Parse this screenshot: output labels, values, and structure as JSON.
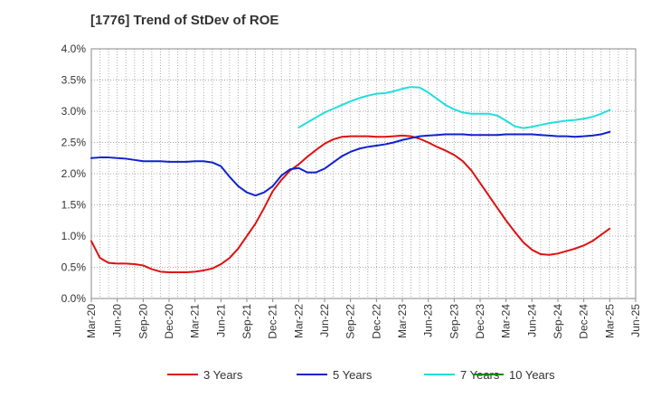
{
  "chart_data": {
    "type": "line",
    "title": "[1776]  Trend of StDev of ROE",
    "xlabel": "",
    "ylabel": "",
    "x_ticks": [
      "Mar-20",
      "Jun-20",
      "Sep-20",
      "Dec-20",
      "Mar-21",
      "Jun-21",
      "Sep-21",
      "Dec-21",
      "Mar-22",
      "Jun-22",
      "Sep-22",
      "Dec-22",
      "Mar-23",
      "Jun-23",
      "Sep-23",
      "Dec-23",
      "Mar-24",
      "Jun-24",
      "Sep-24",
      "Dec-24",
      "Mar-25",
      "Jun-25"
    ],
    "ylim": [
      0,
      4.0
    ],
    "y_ticks": [
      "0.0%",
      "0.5%",
      "1.0%",
      "1.5%",
      "2.0%",
      "2.5%",
      "3.0%",
      "3.5%",
      "4.0%"
    ],
    "grid": true,
    "legend_position": "bottom",
    "series": [
      {
        "name": "3 Years",
        "color": "#dd1111",
        "points": [
          [
            "Mar-20",
            0.92
          ],
          [
            "Apr-20",
            0.65
          ],
          [
            "May-20",
            0.57
          ],
          [
            "Jun-20",
            0.56
          ],
          [
            "Jul-20",
            0.56
          ],
          [
            "Aug-20",
            0.55
          ],
          [
            "Sep-20",
            0.53
          ],
          [
            "Oct-20",
            0.47
          ],
          [
            "Nov-20",
            0.43
          ],
          [
            "Dec-20",
            0.42
          ],
          [
            "Jan-21",
            0.42
          ],
          [
            "Feb-21",
            0.42
          ],
          [
            "Mar-21",
            0.43
          ],
          [
            "Apr-21",
            0.45
          ],
          [
            "May-21",
            0.48
          ],
          [
            "Jun-21",
            0.55
          ],
          [
            "Jul-21",
            0.65
          ],
          [
            "Aug-21",
            0.8
          ],
          [
            "Sep-21",
            1.0
          ],
          [
            "Oct-21",
            1.2
          ],
          [
            "Nov-21",
            1.45
          ],
          [
            "Dec-21",
            1.72
          ],
          [
            "Jan-22",
            1.9
          ],
          [
            "Feb-22",
            2.05
          ],
          [
            "Mar-22",
            2.15
          ],
          [
            "Apr-22",
            2.27
          ],
          [
            "May-22",
            2.38
          ],
          [
            "Jun-22",
            2.48
          ],
          [
            "Jul-22",
            2.55
          ],
          [
            "Aug-22",
            2.59
          ],
          [
            "Sep-22",
            2.6
          ],
          [
            "Oct-22",
            2.6
          ],
          [
            "Nov-22",
            2.6
          ],
          [
            "Dec-22",
            2.59
          ],
          [
            "Jan-23",
            2.59
          ],
          [
            "Feb-23",
            2.6
          ],
          [
            "Mar-23",
            2.61
          ],
          [
            "Apr-23",
            2.6
          ],
          [
            "May-23",
            2.56
          ],
          [
            "Jun-23",
            2.5
          ],
          [
            "Jul-23",
            2.43
          ],
          [
            "Aug-23",
            2.37
          ],
          [
            "Sep-23",
            2.3
          ],
          [
            "Oct-23",
            2.2
          ],
          [
            "Nov-23",
            2.05
          ],
          [
            "Dec-23",
            1.85
          ],
          [
            "Jan-24",
            1.65
          ],
          [
            "Feb-24",
            1.45
          ],
          [
            "Mar-24",
            1.25
          ],
          [
            "Apr-24",
            1.07
          ],
          [
            "May-24",
            0.9
          ],
          [
            "Jun-24",
            0.78
          ],
          [
            "Jul-24",
            0.71
          ],
          [
            "Aug-24",
            0.7
          ],
          [
            "Sep-24",
            0.72
          ],
          [
            "Oct-24",
            0.76
          ],
          [
            "Nov-24",
            0.8
          ],
          [
            "Dec-24",
            0.85
          ],
          [
            "Jan-25",
            0.92
          ],
          [
            "Feb-25",
            1.02
          ],
          [
            "Mar-25",
            1.12
          ]
        ]
      },
      {
        "name": "5 Years",
        "color": "#1122cc",
        "points": [
          [
            "Mar-20",
            2.25
          ],
          [
            "Apr-20",
            2.26
          ],
          [
            "May-20",
            2.26
          ],
          [
            "Jun-20",
            2.25
          ],
          [
            "Jul-20",
            2.24
          ],
          [
            "Aug-20",
            2.22
          ],
          [
            "Sep-20",
            2.2
          ],
          [
            "Oct-20",
            2.2
          ],
          [
            "Nov-20",
            2.2
          ],
          [
            "Dec-20",
            2.19
          ],
          [
            "Jan-21",
            2.19
          ],
          [
            "Feb-21",
            2.19
          ],
          [
            "Mar-21",
            2.2
          ],
          [
            "Apr-21",
            2.2
          ],
          [
            "May-21",
            2.18
          ],
          [
            "Jun-21",
            2.12
          ],
          [
            "Jul-21",
            1.95
          ],
          [
            "Aug-21",
            1.8
          ],
          [
            "Sep-21",
            1.7
          ],
          [
            "Oct-21",
            1.65
          ],
          [
            "Nov-21",
            1.7
          ],
          [
            "Dec-21",
            1.8
          ],
          [
            "Jan-22",
            1.97
          ],
          [
            "Feb-22",
            2.07
          ],
          [
            "Mar-22",
            2.09
          ],
          [
            "Apr-22",
            2.02
          ],
          [
            "May-22",
            2.02
          ],
          [
            "Jun-22",
            2.08
          ],
          [
            "Jul-22",
            2.18
          ],
          [
            "Aug-22",
            2.28
          ],
          [
            "Sep-22",
            2.35
          ],
          [
            "Oct-22",
            2.4
          ],
          [
            "Nov-22",
            2.43
          ],
          [
            "Dec-22",
            2.45
          ],
          [
            "Jan-23",
            2.47
          ],
          [
            "Feb-23",
            2.5
          ],
          [
            "Mar-23",
            2.54
          ],
          [
            "Apr-23",
            2.57
          ],
          [
            "May-23",
            2.6
          ],
          [
            "Jun-23",
            2.61
          ],
          [
            "Jul-23",
            2.62
          ],
          [
            "Aug-23",
            2.63
          ],
          [
            "Sep-23",
            2.63
          ],
          [
            "Oct-23",
            2.63
          ],
          [
            "Nov-23",
            2.62
          ],
          [
            "Dec-23",
            2.62
          ],
          [
            "Jan-24",
            2.62
          ],
          [
            "Feb-24",
            2.62
          ],
          [
            "Mar-24",
            2.63
          ],
          [
            "Apr-24",
            2.63
          ],
          [
            "May-24",
            2.63
          ],
          [
            "Jun-24",
            2.63
          ],
          [
            "Jul-24",
            2.62
          ],
          [
            "Aug-24",
            2.61
          ],
          [
            "Sep-24",
            2.6
          ],
          [
            "Oct-24",
            2.6
          ],
          [
            "Nov-24",
            2.59
          ],
          [
            "Dec-24",
            2.6
          ],
          [
            "Jan-25",
            2.61
          ],
          [
            "Feb-25",
            2.63
          ],
          [
            "Mar-25",
            2.67
          ]
        ]
      },
      {
        "name": "7 Years",
        "color": "#22dddd",
        "points": [
          [
            "Mar-22",
            2.74
          ],
          [
            "Apr-22",
            2.82
          ],
          [
            "May-22",
            2.9
          ],
          [
            "Jun-22",
            2.98
          ],
          [
            "Jul-22",
            3.04
          ],
          [
            "Aug-22",
            3.1
          ],
          [
            "Sep-22",
            3.16
          ],
          [
            "Oct-22",
            3.21
          ],
          [
            "Nov-22",
            3.25
          ],
          [
            "Dec-22",
            3.28
          ],
          [
            "Jan-23",
            3.29
          ],
          [
            "Feb-23",
            3.32
          ],
          [
            "Mar-23",
            3.36
          ],
          [
            "Apr-23",
            3.39
          ],
          [
            "May-23",
            3.38
          ],
          [
            "Jun-23",
            3.3
          ],
          [
            "Jul-23",
            3.2
          ],
          [
            "Aug-23",
            3.1
          ],
          [
            "Sep-23",
            3.03
          ],
          [
            "Oct-23",
            2.98
          ],
          [
            "Nov-23",
            2.96
          ],
          [
            "Dec-23",
            2.96
          ],
          [
            "Jan-24",
            2.96
          ],
          [
            "Feb-24",
            2.93
          ],
          [
            "Mar-24",
            2.85
          ],
          [
            "Apr-24",
            2.76
          ],
          [
            "May-24",
            2.73
          ],
          [
            "Jun-24",
            2.75
          ],
          [
            "Jul-24",
            2.78
          ],
          [
            "Aug-24",
            2.81
          ],
          [
            "Sep-24",
            2.83
          ],
          [
            "Oct-24",
            2.85
          ],
          [
            "Nov-24",
            2.86
          ],
          [
            "Dec-24",
            2.88
          ],
          [
            "Jan-25",
            2.91
          ],
          [
            "Feb-25",
            2.96
          ],
          [
            "Mar-25",
            3.02
          ]
        ]
      },
      {
        "name": "10 Years",
        "color": "#118811",
        "points": []
      }
    ]
  }
}
